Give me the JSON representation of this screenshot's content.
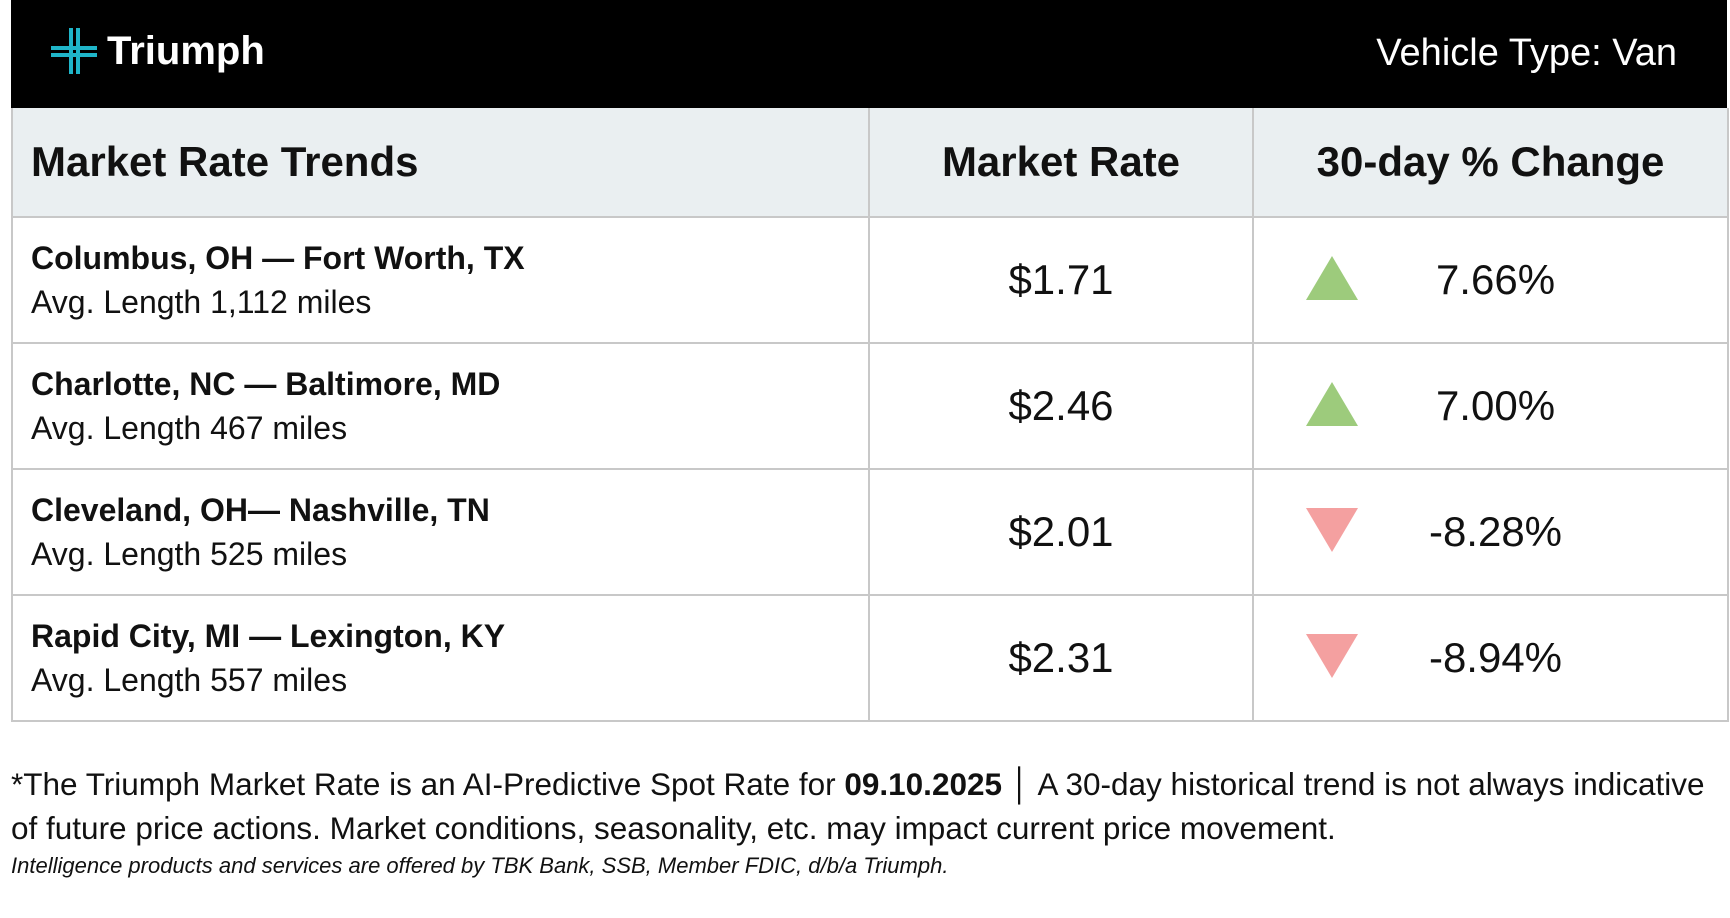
{
  "header": {
    "logo": "Triumph",
    "vehicle_type": "Vehicle Type: Van"
  },
  "table": {
    "columns": [
      "Market Rate Trends",
      "Market Rate",
      "30-day % Change"
    ],
    "rows": [
      {
        "lane": "Columbus, OH — Fort Worth, TX",
        "length": "Avg. Length 1,112 miles",
        "rate": "$1.71",
        "change": "7.66%"
      },
      {
        "lane": "Charlotte, NC — Baltimore, MD",
        "length": "Avg. Length 467 miles",
        "rate": "$2.46",
        "change": "7.00%"
      },
      {
        "lane": "Cleveland, OH— Nashville, TN",
        "length": "Avg. Length 525 miles",
        "rate": "$2.01",
        "change": "-8.28%"
      },
      {
        "lane": "Rapid City, MI — Lexington, KY",
        "length": "Avg. Length 557 miles",
        "rate": "$2.31",
        "change": "-8.94%"
      }
    ]
  },
  "footer": {
    "note_before": "*The Triumph Market Rate is an AI-Predictive Spot Rate for ",
    "note_date": "09.10.2025",
    "note_after": " │ A 30-day historical trend is not always indicative of future price actions. Market conditions, seasonality, etc. may impact current price movement.",
    "disclaimer": "Intelligence products and services are offered by TBK Bank, SSB, Member FDIC, d/b/a Triumph."
  }
}
